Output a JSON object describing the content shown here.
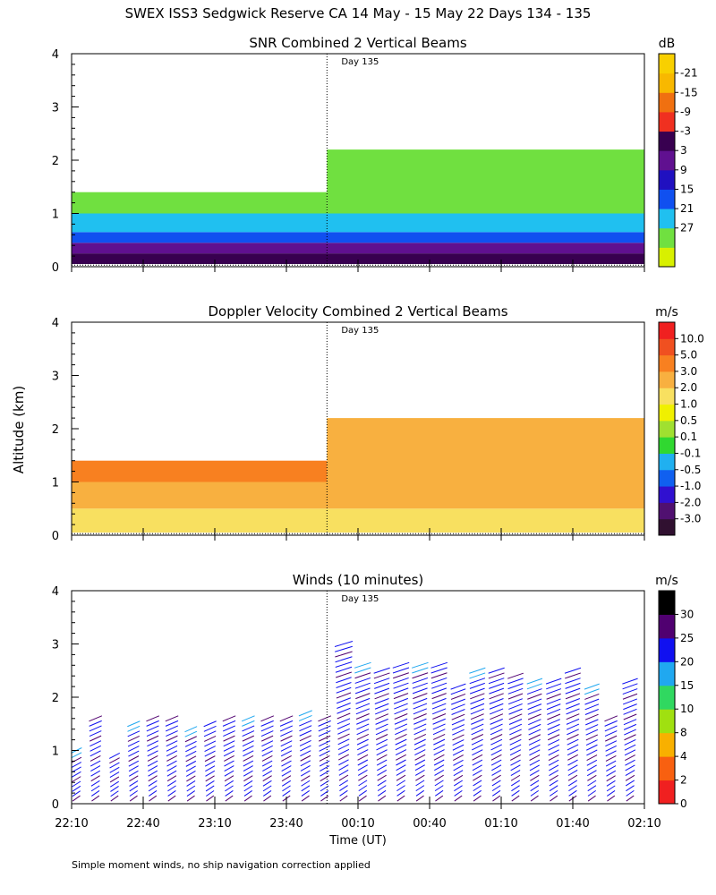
{
  "figure": {
    "title": "SWEX ISS3 Sedgwick Reserve CA  14 May - 15 May 22 Days 134 - 135",
    "ylabel": "Altitude (km)",
    "xlabel": "Time (UT)",
    "footnote": "Simple moment winds, no ship navigation correction applied",
    "day_marker_label": "Day 135",
    "day_marker_time": "23:57"
  },
  "chart_data": [
    {
      "type": "heatmap",
      "title": "SNR Combined 2 Vertical Beams",
      "units": "dB",
      "x_ticks": [
        "22:10",
        "22:40",
        "23:10",
        "23:40",
        "00:10",
        "00:40",
        "01:10",
        "01:40",
        "02:10"
      ],
      "ylim": [
        0,
        4
      ],
      "y_ticks": [
        "0",
        "1",
        "2",
        "3",
        "4"
      ],
      "colorbar": {
        "labels": [
          "-21",
          "-15",
          "-9",
          "-3",
          "3",
          "9",
          "15",
          "21",
          "27"
        ],
        "colors": [
          "#d8f000",
          "#70e040",
          "#20c0f0",
          "#1050f0",
          "#2010c0",
          "#601090",
          "#380050",
          "#f03020",
          "#f07010",
          "#f8b800",
          "#f8d000"
        ]
      },
      "layers": [
        {
          "time_start": "22:10",
          "time_end": "02:10",
          "alt_from": 0.05,
          "alt_to": 0.25,
          "value_db": 12
        },
        {
          "time_start": "22:10",
          "time_end": "02:10",
          "alt_from": 0.25,
          "alt_to": 0.45,
          "value_db": 5
        },
        {
          "time_start": "22:10",
          "time_end": "02:10",
          "alt_from": 0.45,
          "alt_to": 0.65,
          "value_db": -3
        },
        {
          "time_start": "22:10",
          "time_end": "02:10",
          "alt_from": 0.65,
          "alt_to": 1.0,
          "value_db": -9
        },
        {
          "time_start": "22:10",
          "time_end": "23:57",
          "alt_from": 1.0,
          "alt_to": 1.4,
          "value_db": -18
        },
        {
          "time_start": "23:57",
          "time_end": "02:10",
          "alt_from": 1.0,
          "alt_to": 2.2,
          "value_db": -18
        }
      ]
    },
    {
      "type": "heatmap",
      "title": "Doppler Velocity Combined 2 Vertical Beams",
      "units": "m/s",
      "x_ticks": [
        "22:10",
        "22:40",
        "23:10",
        "23:40",
        "00:10",
        "00:40",
        "01:10",
        "01:40",
        "02:10"
      ],
      "ylim": [
        0,
        4
      ],
      "y_ticks": [
        "0",
        "1",
        "2",
        "3",
        "4"
      ],
      "colorbar": {
        "labels": [
          "10.0",
          "5.0",
          "3.0",
          "2.0",
          "1.0",
          "0.5",
          "0.1",
          "-0.1",
          "-0.5",
          "-1.0",
          "-2.0",
          "-3.0"
        ],
        "colors": [
          "#301030",
          "#501070",
          "#3010d0",
          "#1060f0",
          "#20b0f0",
          "#30d830",
          "#a0e030",
          "#f0f000",
          "#f8e060",
          "#f8b040",
          "#f88020",
          "#f05020",
          "#f02020"
        ]
      },
      "layers": [
        {
          "time_start": "22:10",
          "time_end": "02:10",
          "alt_from": 0.05,
          "alt_to": 0.5,
          "value_ms": -0.1
        },
        {
          "time_start": "22:10",
          "time_end": "02:10",
          "alt_from": 0.5,
          "alt_to": 1.0,
          "value_ms": -0.5
        },
        {
          "time_start": "22:10",
          "time_end": "23:57",
          "alt_from": 1.0,
          "alt_to": 1.4,
          "value_ms": -1.0
        },
        {
          "time_start": "23:57",
          "time_end": "02:10",
          "alt_from": 1.0,
          "alt_to": 2.2,
          "value_ms": -0.5
        }
      ]
    },
    {
      "type": "scatter",
      "title": "Winds (10 minutes)",
      "units": "m/s",
      "x_ticks": [
        "22:10",
        "22:40",
        "23:10",
        "23:40",
        "00:10",
        "00:40",
        "01:10",
        "01:40",
        "02:10"
      ],
      "ylim": [
        0,
        4
      ],
      "y_ticks": [
        "0",
        "1",
        "2",
        "3",
        "4"
      ],
      "colorbar": {
        "labels": [
          "30",
          "25",
          "20",
          "15",
          "10",
          "8",
          "4",
          "2",
          "0"
        ],
        "colors": [
          "#f02020",
          "#f86010",
          "#f8b000",
          "#a0e010",
          "#30d860",
          "#20a8f0",
          "#1010f0",
          "#500070",
          "#000000"
        ]
      },
      "profiles_top_km": [
        {
          "time": "22:12",
          "top": 1.0
        },
        {
          "time": "22:20",
          "top": 1.6
        },
        {
          "time": "22:28",
          "top": 0.9
        },
        {
          "time": "22:36",
          "top": 1.5
        },
        {
          "time": "22:44",
          "top": 1.6
        },
        {
          "time": "22:52",
          "top": 1.6
        },
        {
          "time": "23:00",
          "top": 1.4
        },
        {
          "time": "23:08",
          "top": 1.5
        },
        {
          "time": "23:16",
          "top": 1.6
        },
        {
          "time": "23:24",
          "top": 1.6
        },
        {
          "time": "23:32",
          "top": 1.6
        },
        {
          "time": "23:40",
          "top": 1.6
        },
        {
          "time": "23:48",
          "top": 1.7
        },
        {
          "time": "23:56",
          "top": 1.6
        },
        {
          "time": "00:04",
          "top": 3.0
        },
        {
          "time": "00:12",
          "top": 2.6
        },
        {
          "time": "00:20",
          "top": 2.5
        },
        {
          "time": "00:28",
          "top": 2.6
        },
        {
          "time": "00:36",
          "top": 2.6
        },
        {
          "time": "00:44",
          "top": 2.6
        },
        {
          "time": "00:52",
          "top": 2.2
        },
        {
          "time": "01:00",
          "top": 2.5
        },
        {
          "time": "01:08",
          "top": 2.5
        },
        {
          "time": "01:16",
          "top": 2.4
        },
        {
          "time": "01:24",
          "top": 2.3
        },
        {
          "time": "01:32",
          "top": 2.3
        },
        {
          "time": "01:40",
          "top": 2.5
        },
        {
          "time": "01:48",
          "top": 2.2
        },
        {
          "time": "01:56",
          "top": 1.6
        },
        {
          "time": "02:04",
          "top": 2.3
        }
      ]
    }
  ]
}
